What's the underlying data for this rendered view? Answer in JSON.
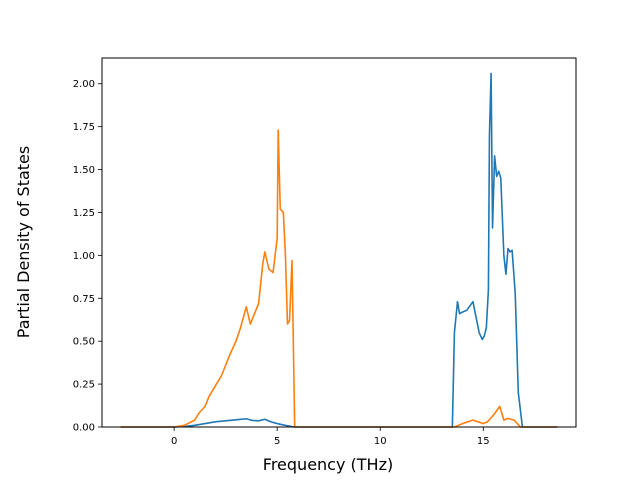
{
  "chart_data": {
    "type": "line",
    "title": "",
    "xlabel": "Frequency (THz)",
    "ylabel": "Partial Density of States",
    "xlim": [
      -3.5,
      19.5
    ],
    "ylim": [
      0,
      2.15
    ],
    "xticks": [
      0,
      5,
      10,
      15
    ],
    "xtick_labels": [
      "0",
      "5",
      "10",
      "15"
    ],
    "yticks": [
      0,
      0.25,
      0.5,
      0.75,
      1.0,
      1.25,
      1.5,
      1.75,
      2.0
    ],
    "ytick_labels": [
      "0.00",
      "0.25",
      "0.50",
      "0.75",
      "1.00",
      "1.25",
      "1.50",
      "1.75",
      "2.00"
    ],
    "grid": false,
    "series": [
      {
        "color": "#1f77b4",
        "x": [
          -2.6,
          0.0,
          0.5,
          1.0,
          1.5,
          2.0,
          2.5,
          3.0,
          3.5,
          3.8,
          4.1,
          4.4,
          4.7,
          5.0,
          5.3,
          5.6,
          5.8,
          6.5,
          10.0,
          13.0,
          13.5,
          13.6,
          13.75,
          13.85,
          14.0,
          14.2,
          14.5,
          14.8,
          14.95,
          15.05,
          15.15,
          15.25,
          15.3,
          15.38,
          15.45,
          15.55,
          15.65,
          15.75,
          15.85,
          16.0,
          16.1,
          16.2,
          16.3,
          16.4,
          16.55,
          16.7,
          16.9,
          18.6
        ],
        "y": [
          0.0,
          0.0,
          0.003,
          0.01,
          0.02,
          0.03,
          0.036,
          0.042,
          0.048,
          0.038,
          0.036,
          0.045,
          0.03,
          0.02,
          0.012,
          0.005,
          0.0,
          0.0,
          0.0,
          0.0,
          0.0,
          0.55,
          0.73,
          0.66,
          0.67,
          0.68,
          0.73,
          0.55,
          0.51,
          0.53,
          0.58,
          0.8,
          1.7,
          2.06,
          1.16,
          1.58,
          1.46,
          1.49,
          1.45,
          1.0,
          0.89,
          1.04,
          1.02,
          1.03,
          0.78,
          0.2,
          0.0,
          0.0
        ]
      },
      {
        "color": "#ff7f0e",
        "x": [
          -2.6,
          0.0,
          0.5,
          1.0,
          1.2,
          1.5,
          1.7,
          2.0,
          2.3,
          2.5,
          2.7,
          3.0,
          3.2,
          3.5,
          3.7,
          3.9,
          4.1,
          4.3,
          4.4,
          4.6,
          4.8,
          5.0,
          5.05,
          5.15,
          5.3,
          5.4,
          5.5,
          5.6,
          5.72,
          5.85,
          6.5,
          10.0,
          13.6,
          14.0,
          14.5,
          15.0,
          15.2,
          15.5,
          15.8,
          16.0,
          16.2,
          16.5,
          16.8,
          18.6
        ],
        "y": [
          0.0,
          0.0,
          0.01,
          0.04,
          0.08,
          0.12,
          0.18,
          0.24,
          0.3,
          0.36,
          0.42,
          0.5,
          0.57,
          0.7,
          0.6,
          0.66,
          0.72,
          0.95,
          1.02,
          0.92,
          0.9,
          1.1,
          1.73,
          1.27,
          1.25,
          1.0,
          0.6,
          0.62,
          0.97,
          0.0,
          0.0,
          0.0,
          0.0,
          0.02,
          0.04,
          0.02,
          0.03,
          0.07,
          0.12,
          0.04,
          0.05,
          0.04,
          0.0,
          0.0
        ]
      }
    ]
  }
}
